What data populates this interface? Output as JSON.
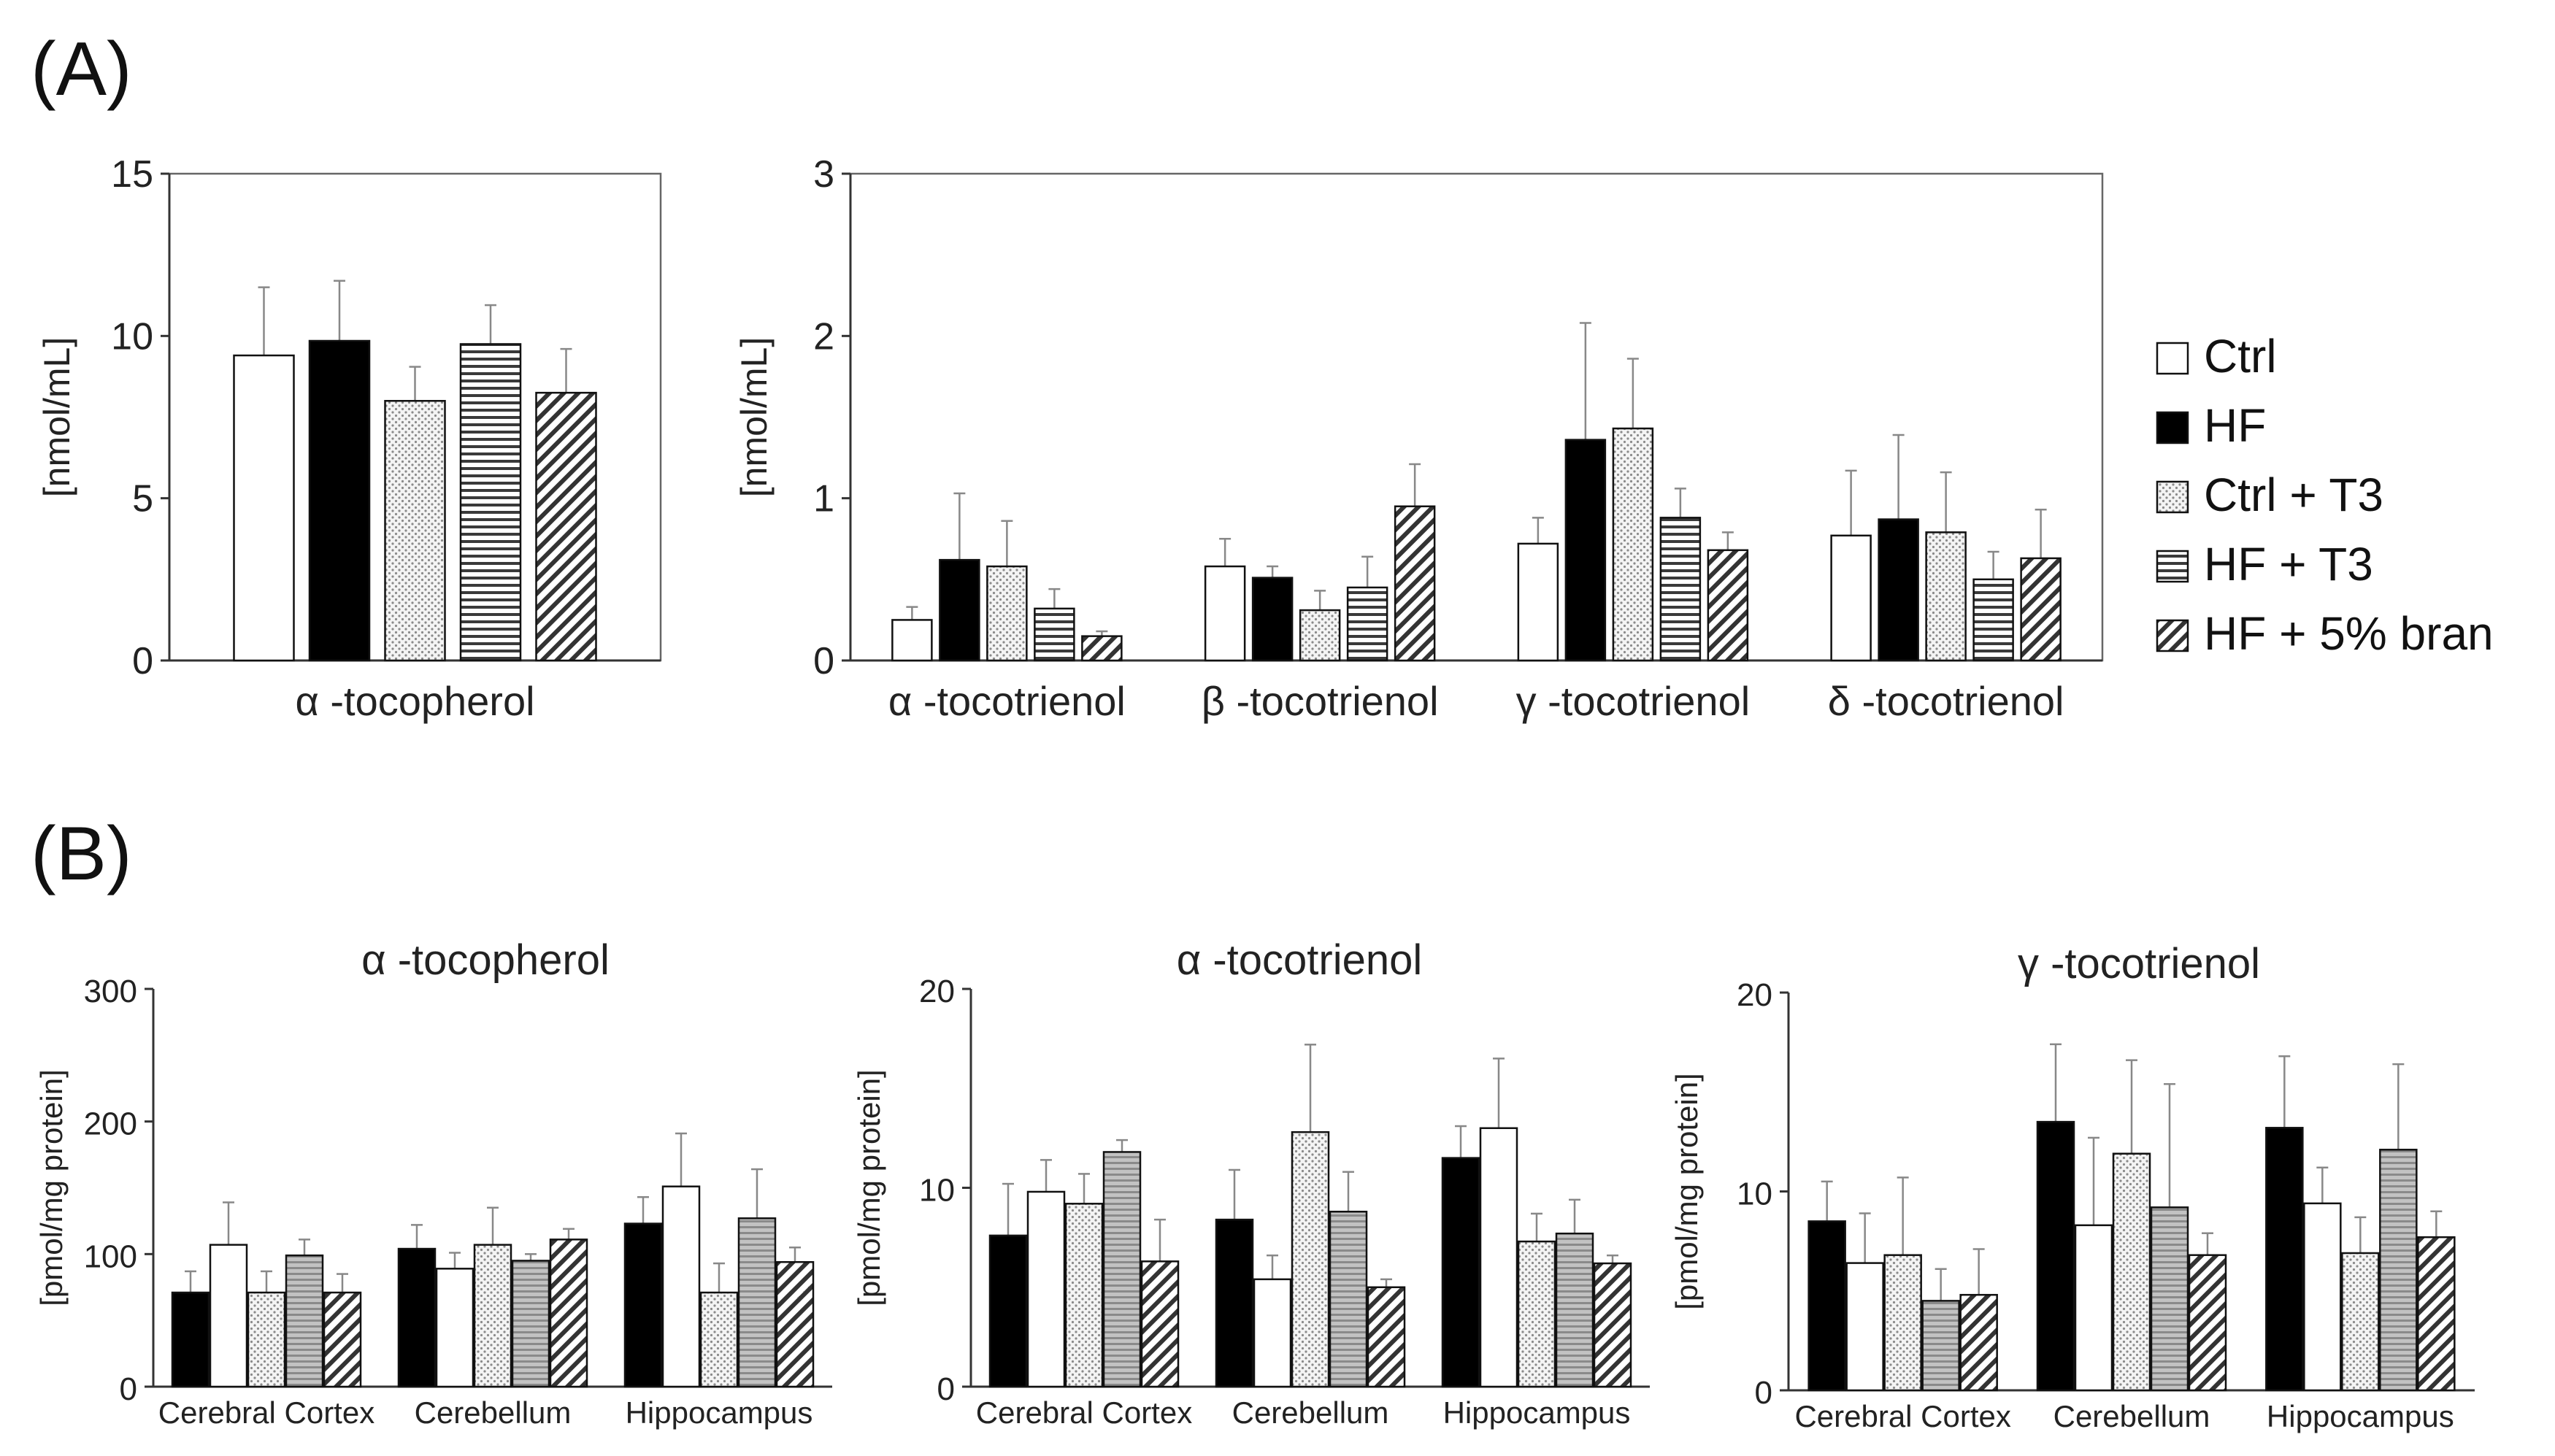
{
  "panel_labels": [
    "(A)",
    "(B)"
  ],
  "legend": [
    {
      "name": "Ctrl",
      "pattern": "white"
    },
    {
      "name": "HF",
      "pattern": "black"
    },
    {
      "name": "Ctrl + T3",
      "pattern": "dots"
    },
    {
      "name": "HF + T3",
      "pattern": "hlines"
    },
    {
      "name": "HF + 5% bran",
      "pattern": "diag"
    }
  ],
  "chart_data": [
    {
      "id": "A-left",
      "type": "bar",
      "title": "",
      "ylabel": "[nmol/mL]",
      "xlabel": "",
      "ylim": [
        0,
        15
      ],
      "yticks": [
        0,
        5,
        10,
        15
      ],
      "categories": [
        "α -tocopherol"
      ],
      "series": [
        {
          "name": "Ctrl",
          "values": [
            9.4
          ],
          "errors": [
            2.1
          ]
        },
        {
          "name": "HF",
          "values": [
            9.85
          ],
          "errors": [
            1.85
          ]
        },
        {
          "name": "Ctrl + T3",
          "values": [
            8.0
          ],
          "errors": [
            1.05
          ]
        },
        {
          "name": "HF + T3",
          "values": [
            9.75
          ],
          "errors": [
            1.2
          ]
        },
        {
          "name": "HF + 5% bran",
          "values": [
            8.25
          ],
          "errors": [
            1.35
          ]
        }
      ]
    },
    {
      "id": "A-right",
      "type": "bar",
      "title": "",
      "ylabel": "[nmol/mL]",
      "xlabel": "",
      "ylim": [
        0,
        3
      ],
      "yticks": [
        0,
        1,
        2,
        3
      ],
      "categories": [
        "α -tocotrienol",
        "β -tocotrienol",
        "γ -tocotrienol",
        "δ -tocotrienol"
      ],
      "series": [
        {
          "name": "Ctrl",
          "values": [
            0.25,
            0.58,
            0.72,
            0.77
          ],
          "errors": [
            0.08,
            0.17,
            0.16,
            0.4
          ]
        },
        {
          "name": "HF",
          "values": [
            0.62,
            0.51,
            1.36,
            0.87
          ],
          "errors": [
            0.41,
            0.07,
            0.72,
            0.52
          ]
        },
        {
          "name": "Ctrl + T3",
          "values": [
            0.58,
            0.31,
            1.43,
            0.79
          ],
          "errors": [
            0.28,
            0.12,
            0.43,
            0.37
          ]
        },
        {
          "name": "HF + T3",
          "values": [
            0.32,
            0.45,
            0.88,
            0.5
          ],
          "errors": [
            0.12,
            0.19,
            0.18,
            0.17
          ]
        },
        {
          "name": "HF + 5% bran",
          "values": [
            0.15,
            0.95,
            0.68,
            0.63
          ],
          "errors": [
            0.03,
            0.26,
            0.11,
            0.3
          ]
        }
      ]
    },
    {
      "id": "B-1",
      "type": "bar",
      "title": "α -tocopherol",
      "ylabel": "[pmol/mg protein]",
      "xlabel": "",
      "ylim": [
        0,
        300
      ],
      "yticks": [
        0,
        100,
        200,
        300
      ],
      "categories": [
        "Cerebral Cortex",
        "Cerebellum",
        "Hippocampus"
      ],
      "series": [
        {
          "name": "HF",
          "values": [
            71,
            104,
            123
          ],
          "errors": [
            16,
            18,
            20
          ]
        },
        {
          "name": "Ctrl",
          "values": [
            107,
            89,
            151
          ],
          "errors": [
            32,
            12,
            40
          ]
        },
        {
          "name": "Ctrl + T3",
          "values": [
            71,
            107,
            71
          ],
          "errors": [
            16,
            28,
            22
          ]
        },
        {
          "name": "HF + T3",
          "values": [
            99,
            95,
            127
          ],
          "errors": [
            12,
            5,
            37
          ]
        },
        {
          "name": "HF + 5% bran",
          "values": [
            71,
            111,
            94
          ],
          "errors": [
            14,
            8,
            11
          ]
        }
      ]
    },
    {
      "id": "B-2",
      "type": "bar",
      "title": "α -tocotrienol",
      "ylabel": "[pmol/mg protein]",
      "xlabel": "",
      "ylim": [
        0,
        20
      ],
      "yticks": [
        0,
        10,
        20
      ],
      "categories": [
        "Cerebral Cortex",
        "Cerebellum",
        "Hippocampus"
      ],
      "series": [
        {
          "name": "HF",
          "values": [
            7.6,
            8.4,
            11.5
          ],
          "errors": [
            2.6,
            2.5,
            1.6
          ]
        },
        {
          "name": "Ctrl",
          "values": [
            9.8,
            5.4,
            13.0
          ],
          "errors": [
            1.6,
            1.2,
            3.5
          ]
        },
        {
          "name": "Ctrl + T3",
          "values": [
            9.2,
            12.8,
            7.3
          ],
          "errors": [
            1.5,
            4.4,
            1.4
          ]
        },
        {
          "name": "HF + T3",
          "values": [
            11.8,
            8.8,
            7.7
          ],
          "errors": [
            0.6,
            2.0,
            1.7
          ]
        },
        {
          "name": "HF + 5% bran",
          "values": [
            6.3,
            5.0,
            6.2
          ],
          "errors": [
            2.1,
            0.4,
            0.4
          ]
        }
      ]
    },
    {
      "id": "B-3",
      "type": "bar",
      "title": "γ -tocotrienol",
      "ylabel": "[pmol/mg protein]",
      "xlabel": "",
      "ylim": [
        0,
        20
      ],
      "yticks": [
        0,
        10,
        20
      ],
      "categories": [
        "Cerebral Cortex",
        "Cerebellum",
        "Hippocampus"
      ],
      "series": [
        {
          "name": "HF",
          "values": [
            8.5,
            13.5,
            13.2
          ],
          "errors": [
            2.0,
            3.9,
            3.6
          ]
        },
        {
          "name": "Ctrl",
          "values": [
            6.4,
            8.3,
            9.4
          ],
          "errors": [
            2.5,
            4.4,
            1.8
          ]
        },
        {
          "name": "Ctrl + T3",
          "values": [
            6.8,
            11.9,
            6.9
          ],
          "errors": [
            3.9,
            4.7,
            1.8
          ]
        },
        {
          "name": "HF + T3",
          "values": [
            4.5,
            9.2,
            12.1
          ],
          "errors": [
            1.6,
            6.2,
            4.3
          ]
        },
        {
          "name": "HF + 5% bran",
          "values": [
            4.8,
            6.8,
            7.7
          ],
          "errors": [
            2.3,
            1.1,
            1.3
          ]
        }
      ]
    }
  ]
}
